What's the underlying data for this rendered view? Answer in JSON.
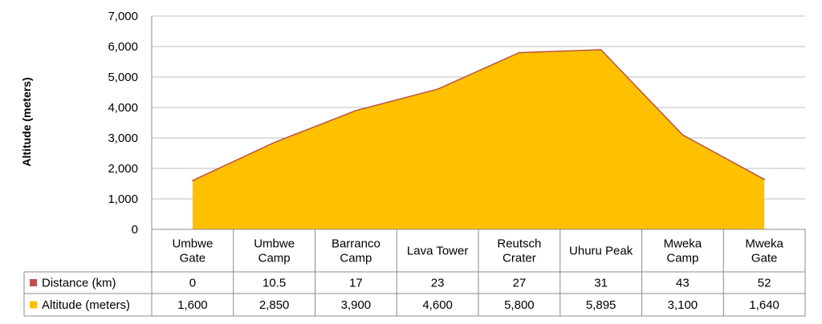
{
  "chart_data": {
    "type": "area",
    "ylabel": "Altitude (meters)",
    "ylim": [
      0,
      7000
    ],
    "yticks": [
      "0",
      "1,000",
      "2,000",
      "3,000",
      "4,000",
      "5,000",
      "6,000",
      "7,000"
    ],
    "categories": [
      [
        "Umbwe",
        "Gate"
      ],
      [
        "Umbwe",
        "Camp"
      ],
      [
        "Barranco",
        "Camp"
      ],
      [
        "Lava Tower"
      ],
      [
        "Reutsch",
        "Crater"
      ],
      [
        "Uhuru Peak"
      ],
      [
        "Mweka",
        "Camp"
      ],
      [
        "Mweka",
        "Gate"
      ]
    ],
    "grid": "horizontal",
    "legend": "data-table",
    "series": [
      {
        "name": "Distance (km)",
        "color": "#c0504d",
        "values": [
          0,
          10.5,
          17,
          23,
          27,
          31,
          43,
          52
        ],
        "labels": [
          "0",
          "10.5",
          "17",
          "23",
          "27",
          "31",
          "43",
          "52"
        ]
      },
      {
        "name": "Altitude (meters)",
        "color": "#ffc000",
        "values": [
          1600,
          2850,
          3900,
          4600,
          5800,
          5895,
          3100,
          1640
        ],
        "labels": [
          "1,600",
          "2,850",
          "3,900",
          "4,600",
          "5,800",
          "5,895",
          "3,100",
          "1,640"
        ]
      }
    ]
  }
}
